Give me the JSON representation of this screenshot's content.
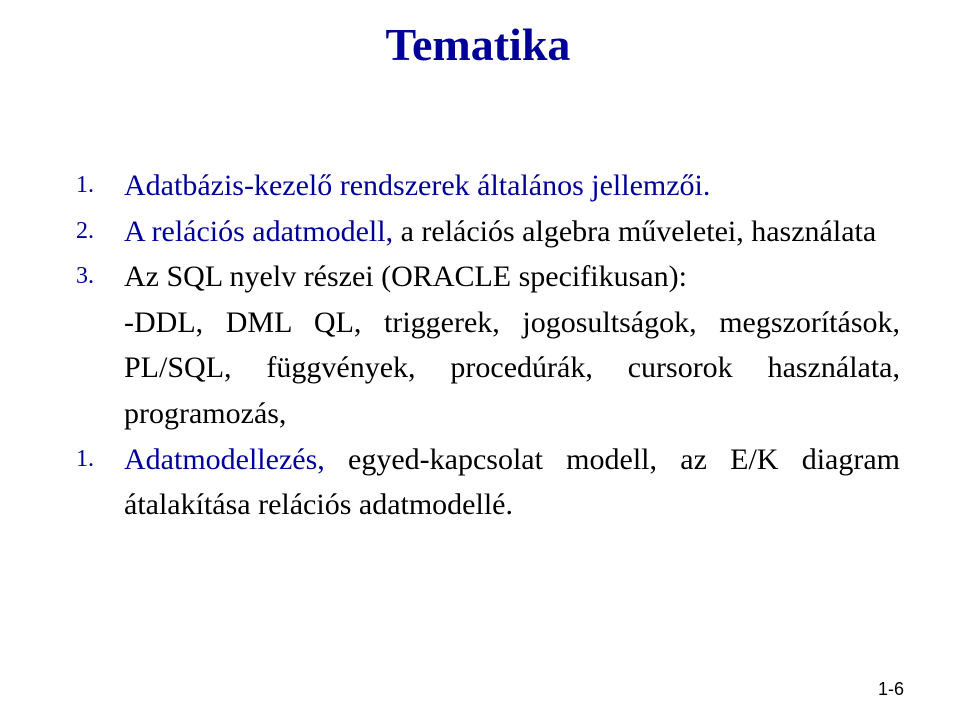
{
  "colors": {
    "accent": "#000099",
    "body": "#000000",
    "background": "#ffffff"
  },
  "typography": {
    "title_fontsize": 46,
    "body_fontsize": 30,
    "number_fontsize": 24,
    "pagenum_fontsize": 18,
    "font_family": "Times New Roman"
  },
  "title": "Tematika",
  "items": [
    {
      "num": "1.",
      "heading": "Adatbázis-kezelő rendszerek általános jellemzői.",
      "body": ""
    },
    {
      "num": "2.",
      "heading": "A relációs adatmodell",
      "comma": ",",
      "body": " a relációs algebra műveletei, használata"
    },
    {
      "num": "3.",
      "heading": "",
      "body": "Az SQL nyelv részei (ORACLE specifikusan):",
      "sub": "-DDL, DML QL, triggerek, jogosultságok, megszorítások, PL/SQL, függvények, procedúrák, cursorok használata, programozás,"
    },
    {
      "num": "1.",
      "heading": "Adatmodellezés",
      "comma": ",",
      "body": " egyed-kapcsolat modell, az E/K diagram átalakítása relációs adatmodellé."
    }
  ],
  "page_number": "1-6"
}
